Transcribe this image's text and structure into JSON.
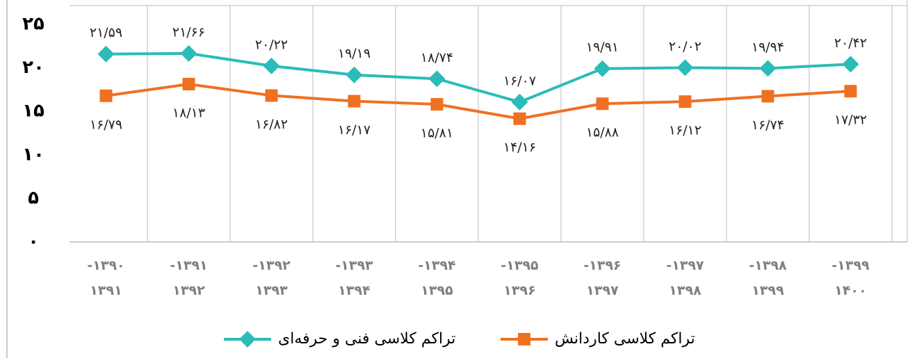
{
  "chart_data": {
    "type": "line",
    "categories": [
      "۱۳۹۰- ۱۳۹۱",
      "۱۳۹۱- ۱۳۹۲",
      "۱۳۹۲- ۱۳۹۳",
      "۱۳۹۳- ۱۳۹۴",
      "۱۳۹۴- ۱۳۹۵",
      "۱۳۹۵- ۱۳۹۶",
      "۱۳۹۶- ۱۳۹۷",
      "۱۳۹۷- ۱۳۹۸",
      "۱۳۹۸- ۱۳۹۹",
      "۱۳۹۹- ۱۴۰۰"
    ],
    "series": [
      {
        "name": "تراکم کلاسی کاردانش",
        "color": "#f07022",
        "marker": "square",
        "values": [
          16.79,
          18.13,
          16.82,
          16.17,
          15.81,
          14.16,
          15.88,
          16.12,
          16.74,
          17.32
        ],
        "value_labels": [
          "۱۶/۷۹",
          "۱۸/۱۳",
          "۱۶/۸۲",
          "۱۶/۱۷",
          "۱۵/۸۱",
          "۱۴/۱۶",
          "۱۵/۸۸",
          "۱۶/۱۲",
          "۱۶/۷۴",
          "۱۷/۳۲"
        ]
      },
      {
        "name": "تراکم کلاسی فنی و حرفه‌ای",
        "color": "#2bbcb7",
        "marker": "diamond",
        "values": [
          21.59,
          21.66,
          20.22,
          19.19,
          18.74,
          16.07,
          19.91,
          20.02,
          19.94,
          20.42
        ],
        "value_labels": [
          "۲۱/۵۹",
          "۲۱/۶۶",
          "۲۰/۲۲",
          "۱۹/۱۹",
          "۱۸/۷۴",
          "۱۶/۰۷",
          "۱۹/۹۱",
          "۲۰/۰۲",
          "۱۹/۹۴",
          "۲۰/۴۲"
        ]
      }
    ],
    "ylim": [
      0,
      25
    ],
    "yticks": [
      {
        "value": 0,
        "label": "۰"
      },
      {
        "value": 5,
        "label": "۵"
      },
      {
        "value": 10,
        "label": "۱۰"
      },
      {
        "value": 15,
        "label": "۱۵"
      },
      {
        "value": 20,
        "label": "۲۰"
      },
      {
        "value": 25,
        "label": "۲۵"
      }
    ],
    "grid": "vertical",
    "legend": "bottom"
  }
}
